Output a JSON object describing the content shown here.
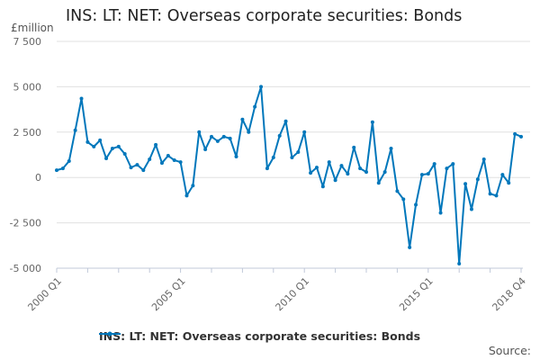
{
  "title": "INS: LT: NET: Overseas corporate securities: Bonds",
  "source_label": "Source:",
  "chart_data": {
    "type": "line",
    "title": "INS: LT: NET: Overseas corporate securities: Bonds",
    "ylabel": "£million",
    "ylim": [
      -5000,
      7500
    ],
    "yticks": [
      7500,
      5000,
      2500,
      0,
      -2500,
      -5000
    ],
    "ytick_labels": [
      "7 500",
      "5 000",
      "2 500",
      "0",
      "-2 500",
      "-5 000"
    ],
    "x_start": "2000 Q1",
    "x_end": "2018 Q4",
    "xtick_labels": [
      {
        "index": 0,
        "label": "2000 Q1"
      },
      {
        "index": 20,
        "label": "2005 Q1"
      },
      {
        "index": 40,
        "label": "2010 Q1"
      },
      {
        "index": 60,
        "label": "2015 Q1"
      },
      {
        "index": 75,
        "label": "2018 Q4"
      }
    ],
    "grid": true,
    "legend_position": "bottom",
    "series": [
      {
        "name": "INS: LT: NET: Overseas corporate securities: Bonds",
        "color": "#0077bb",
        "values": [
          400,
          500,
          900,
          2600,
          4350,
          1950,
          1700,
          2050,
          1050,
          1600,
          1700,
          1300,
          550,
          700,
          400,
          1000,
          1800,
          800,
          1200,
          950,
          850,
          -1000,
          -450,
          2500,
          1550,
          2250,
          2000,
          2250,
          2150,
          1150,
          3200,
          2500,
          3900,
          5000,
          500,
          1100,
          2300,
          3100,
          1100,
          1400,
          2500,
          250,
          550,
          -500,
          850,
          -150,
          650,
          200,
          1650,
          500,
          300,
          3050,
          -300,
          300,
          1600,
          -750,
          -1200,
          -3850,
          -1500,
          150,
          200,
          750,
          -1950,
          500,
          750,
          -4750,
          -350,
          -1750,
          -100,
          1000,
          -900,
          -1000,
          150,
          -300,
          2400,
          2250
        ]
      }
    ]
  }
}
